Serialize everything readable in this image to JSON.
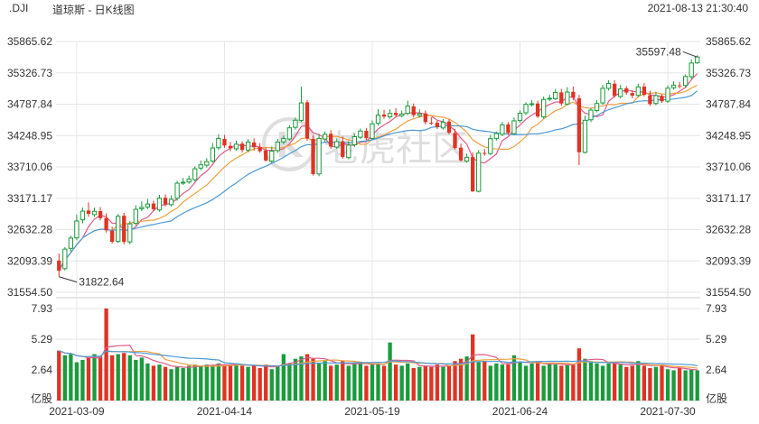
{
  "header": {
    "symbol": ".DJI",
    "chart_name": "道琼斯 - 日K线图",
    "timestamp": "2021-08-13 21:30:40"
  },
  "watermark": {
    "text": "老虎社区",
    "logo_letter": "K"
  },
  "colors": {
    "up": "#1a9b3c",
    "down": "#e03324",
    "ma5": "#e05a8a",
    "ma10": "#f0a040",
    "ma20": "#4a9ad8",
    "grid": "#e6e6e6"
  },
  "chart_data": {
    "type": "candlestick",
    "price_axis": {
      "ticks": [
        "35865.62",
        "35326.73",
        "34787.84",
        "34248.95",
        "33710.06",
        "33171.17",
        "32632.28",
        "32093.39",
        "31554.50"
      ],
      "range": [
        31554.5,
        35865.62
      ]
    },
    "volume_axis": {
      "ticks": [
        "7.93",
        "5.29",
        "2.64"
      ],
      "unit": "亿股",
      "range": [
        0,
        7.93
      ]
    },
    "x_axis": {
      "ticks": [
        "2021-03-09",
        "2021-04-14",
        "2021-05-19",
        "2021-06-24",
        "2021-07-30"
      ],
      "tick_index": [
        3,
        28,
        53,
        78,
        103
      ]
    },
    "annotations": {
      "low_label": "31822.64",
      "low_value": 31822.64,
      "high_label": "35597.48",
      "high_value": 35597.48
    },
    "close": [
      31925,
      32297,
      32486,
      32780,
      32950,
      32902,
      32946,
      32828,
      32619,
      32423,
      32862,
      32420,
      32731,
      32981,
      33015,
      33072,
      32982,
      33171,
      33066,
      33153,
      33430,
      33446,
      33503,
      33678,
      33746,
      33800,
      34035,
      34200,
      34078,
      34030,
      34100,
      34000,
      34138,
      34048,
      33980,
      33820,
      33981,
      34137,
      34200,
      34382,
      34512,
      34810,
      34200,
      33587,
      34200,
      34269,
      34060,
      34145,
      33880,
      34084,
      34230,
      34327,
      34207,
      34450,
      34600,
      34575,
      34630,
      34600,
      34620,
      34756,
      34599,
      34620,
      34480,
      34466,
      34393,
      34479,
      34299,
      34033,
      33823,
      33876,
      33290,
      33946,
      33945,
      34196,
      34283,
      34433,
      34292,
      34502,
      34633,
      34786,
      34796,
      34577,
      34870,
      34890,
      34989,
      34800,
      34996,
      34899,
      33962,
      34511,
      34687,
      34800,
      35061,
      35144,
      34930,
      35050,
      34987,
      34935,
      35085,
      34950,
      34790,
      34935,
      34838,
      35063,
      35116,
      35102,
      35264,
      35496,
      35600
    ],
    "open": [
      32100,
      31960,
      32310,
      32490,
      32800,
      32960,
      32890,
      32950,
      32830,
      32610,
      32430,
      32870,
      32420,
      32740,
      32990,
      33020,
      33080,
      32970,
      33180,
      33060,
      33170,
      33440,
      33450,
      33490,
      33690,
      33740,
      33810,
      34040,
      34190,
      34070,
      34020,
      34110,
      34000,
      34130,
      34050,
      33990,
      33810,
      33990,
      34140,
      34190,
      34390,
      34510,
      34820,
      34190,
      33590,
      34190,
      34280,
      34050,
      34150,
      33870,
      34090,
      34220,
      34330,
      34200,
      34460,
      34610,
      34570,
      34640,
      34590,
      34630,
      34750,
      34590,
      34630,
      34470,
      34470,
      34380,
      34490,
      34290,
      34040,
      33810,
      33880,
      33290,
      33950,
      33940,
      34200,
      34270,
      34440,
      34280,
      34510,
      34640,
      34780,
      34800,
      34570,
      34880,
      34880,
      34990,
      34790,
      35000,
      34890,
      33960,
      34520,
      34680,
      34810,
      35060,
      35140,
      34920,
      35060,
      34980,
      34940,
      35090,
      34940,
      34800,
      34930,
      34840,
      35070,
      35110,
      35110,
      35260,
      35500
    ],
    "high": [
      32220,
      32330,
      32530,
      32890,
      33010,
      33100,
      33010,
      33020,
      32910,
      32680,
      32900,
      32920,
      32780,
      33050,
      33120,
      33160,
      33130,
      33230,
      33240,
      33220,
      33470,
      33520,
      33560,
      33720,
      33820,
      33860,
      34120,
      34270,
      34260,
      34140,
      34160,
      34150,
      34190,
      34200,
      34120,
      34040,
      34060,
      34190,
      34250,
      34430,
      34560,
      35090,
      34860,
      34250,
      34280,
      34320,
      34340,
      34200,
      34230,
      34150,
      34280,
      34370,
      34380,
      34510,
      34700,
      34690,
      34700,
      34720,
      34680,
      34850,
      34800,
      34700,
      34680,
      34560,
      34500,
      34530,
      34530,
      34360,
      34110,
      33940,
      33960,
      34000,
      34020,
      34260,
      34320,
      34480,
      34480,
      34560,
      34680,
      34820,
      34860,
      34850,
      34920,
      34950,
      35050,
      35050,
      35080,
      35090,
      34950,
      34590,
      34720,
      34860,
      35120,
      35200,
      35200,
      35120,
      35100,
      35030,
      35140,
      35150,
      35020,
      35000,
      34960,
      35110,
      35180,
      35170,
      35300,
      35560,
      35630
    ],
    "low": [
      31822.64,
      31930,
      32250,
      32450,
      32740,
      32850,
      32850,
      32790,
      32580,
      32390,
      32400,
      32380,
      32380,
      32700,
      32950,
      32980,
      32950,
      32940,
      33030,
      33030,
      33130,
      33400,
      33420,
      33460,
      33650,
      33700,
      33780,
      34000,
      34040,
      33980,
      33990,
      33960,
      33960,
      33990,
      33950,
      33800,
      33780,
      33950,
      34100,
      34160,
      34350,
      34480,
      34160,
      33560,
      33550,
      34140,
      34020,
      34020,
      33850,
      33840,
      34050,
      34190,
      34170,
      34170,
      34420,
      34540,
      34540,
      34570,
      34560,
      34600,
      34560,
      34560,
      34440,
      34430,
      34360,
      34350,
      34270,
      34010,
      33800,
      33780,
      33280,
      33270,
      33900,
      33910,
      34160,
      34240,
      34260,
      34260,
      34470,
      34600,
      34750,
      34550,
      34540,
      34840,
      34860,
      34760,
      34770,
      34860,
      33740,
      33940,
      34480,
      34650,
      34780,
      35020,
      34900,
      34890,
      34950,
      34890,
      34910,
      34920,
      34760,
      34770,
      34810,
      34810,
      35040,
      35060,
      35070,
      35220,
      35480
    ],
    "volume": [
      4.3,
      3.9,
      4.0,
      3.3,
      3.5,
      3.7,
      4.0,
      3.8,
      7.93,
      3.9,
      4.0,
      4.1,
      3.9,
      3.5,
      3.7,
      3.2,
      3.0,
      3.1,
      2.9,
      2.7,
      2.9,
      2.8,
      3.0,
      3.1,
      3.0,
      3.1,
      3.0,
      3.2,
      3.1,
      3.0,
      3.2,
      3.0,
      2.9,
      3.0,
      2.8,
      3.1,
      2.7,
      3.0,
      4.0,
      3.2,
      3.6,
      3.8,
      4.0,
      3.6,
      3.2,
      3.4,
      3.0,
      3.1,
      3.4,
      3.0,
      3.3,
      3.2,
      3.0,
      3.1,
      3.2,
      3.0,
      5.0,
      3.1,
      3.0,
      3.2,
      2.8,
      2.9,
      3.0,
      2.9,
      3.1,
      2.9,
      3.0,
      3.4,
      3.6,
      3.8,
      5.7,
      3.3,
      3.4,
      3.0,
      3.2,
      3.1,
      3.1,
      3.9,
      3.3,
      3.0,
      3.2,
      3.4,
      3.0,
      3.2,
      3.1,
      3.0,
      3.1,
      3.1,
      4.5,
      3.6,
      3.4,
      3.2,
      3.0,
      3.2,
      3.2,
      3.1,
      2.9,
      3.0,
      3.4,
      3.0,
      2.8,
      2.9,
      3.1,
      2.7,
      2.6,
      2.8,
      2.6,
      2.7,
      2.6
    ]
  }
}
